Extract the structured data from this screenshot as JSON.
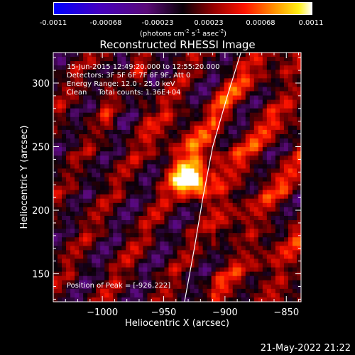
{
  "colorbar": {
    "ticks": [
      "-0.0011",
      "-0.00068",
      "-0.00023",
      "0.00023",
      "0.00068",
      "0.0011"
    ],
    "units_main": "(photons cm",
    "units_exp1": "-2",
    "units_mid": " s",
    "units_exp2": "-1",
    "units_mid2": " asec",
    "units_exp3": "-2",
    "units_end": ")"
  },
  "title": "Reconstructed RHESSI Image",
  "info": {
    "time_range": "15-Jun-2015 12:49:20.000 to 12:55:20.000",
    "detectors": "Detectors: 3F 5F 6F 7F 8F 9F, Att 0",
    "energy": "Energy Range: 12.0 - 25.0 keV",
    "clean": "Clean     Total counts: 1.36E+04",
    "peak": "Position of Peak = [-926,222]"
  },
  "footer_date": "21-May-2022 21:22",
  "chart_data": {
    "type": "heatmap",
    "title": "Reconstructed RHESSI Image",
    "xlabel": "Heliocentric X (arcsec)",
    "ylabel": "Heliocentric Y (arcsec)",
    "xlim": [
      -1040,
      -838
    ],
    "ylim": [
      128,
      324
    ],
    "x_ticks": [
      -1000,
      -950,
      -900,
      -850
    ],
    "y_ticks": [
      150,
      200,
      250,
      300
    ],
    "x_tick_labels": [
      "−1000",
      "−950",
      "−900",
      "−850"
    ],
    "y_tick_labels": [
      "150",
      "200",
      "250",
      "300"
    ],
    "colorbar_range": [
      -0.0011,
      0.0011
    ],
    "peak": [
      -926,
      222
    ],
    "limb_curve": [
      [
        -933,
        128
      ],
      [
        -925,
        170
      ],
      [
        -918,
        210
      ],
      [
        -910,
        250
      ],
      [
        -898,
        290
      ],
      [
        -887,
        324
      ]
    ]
  }
}
